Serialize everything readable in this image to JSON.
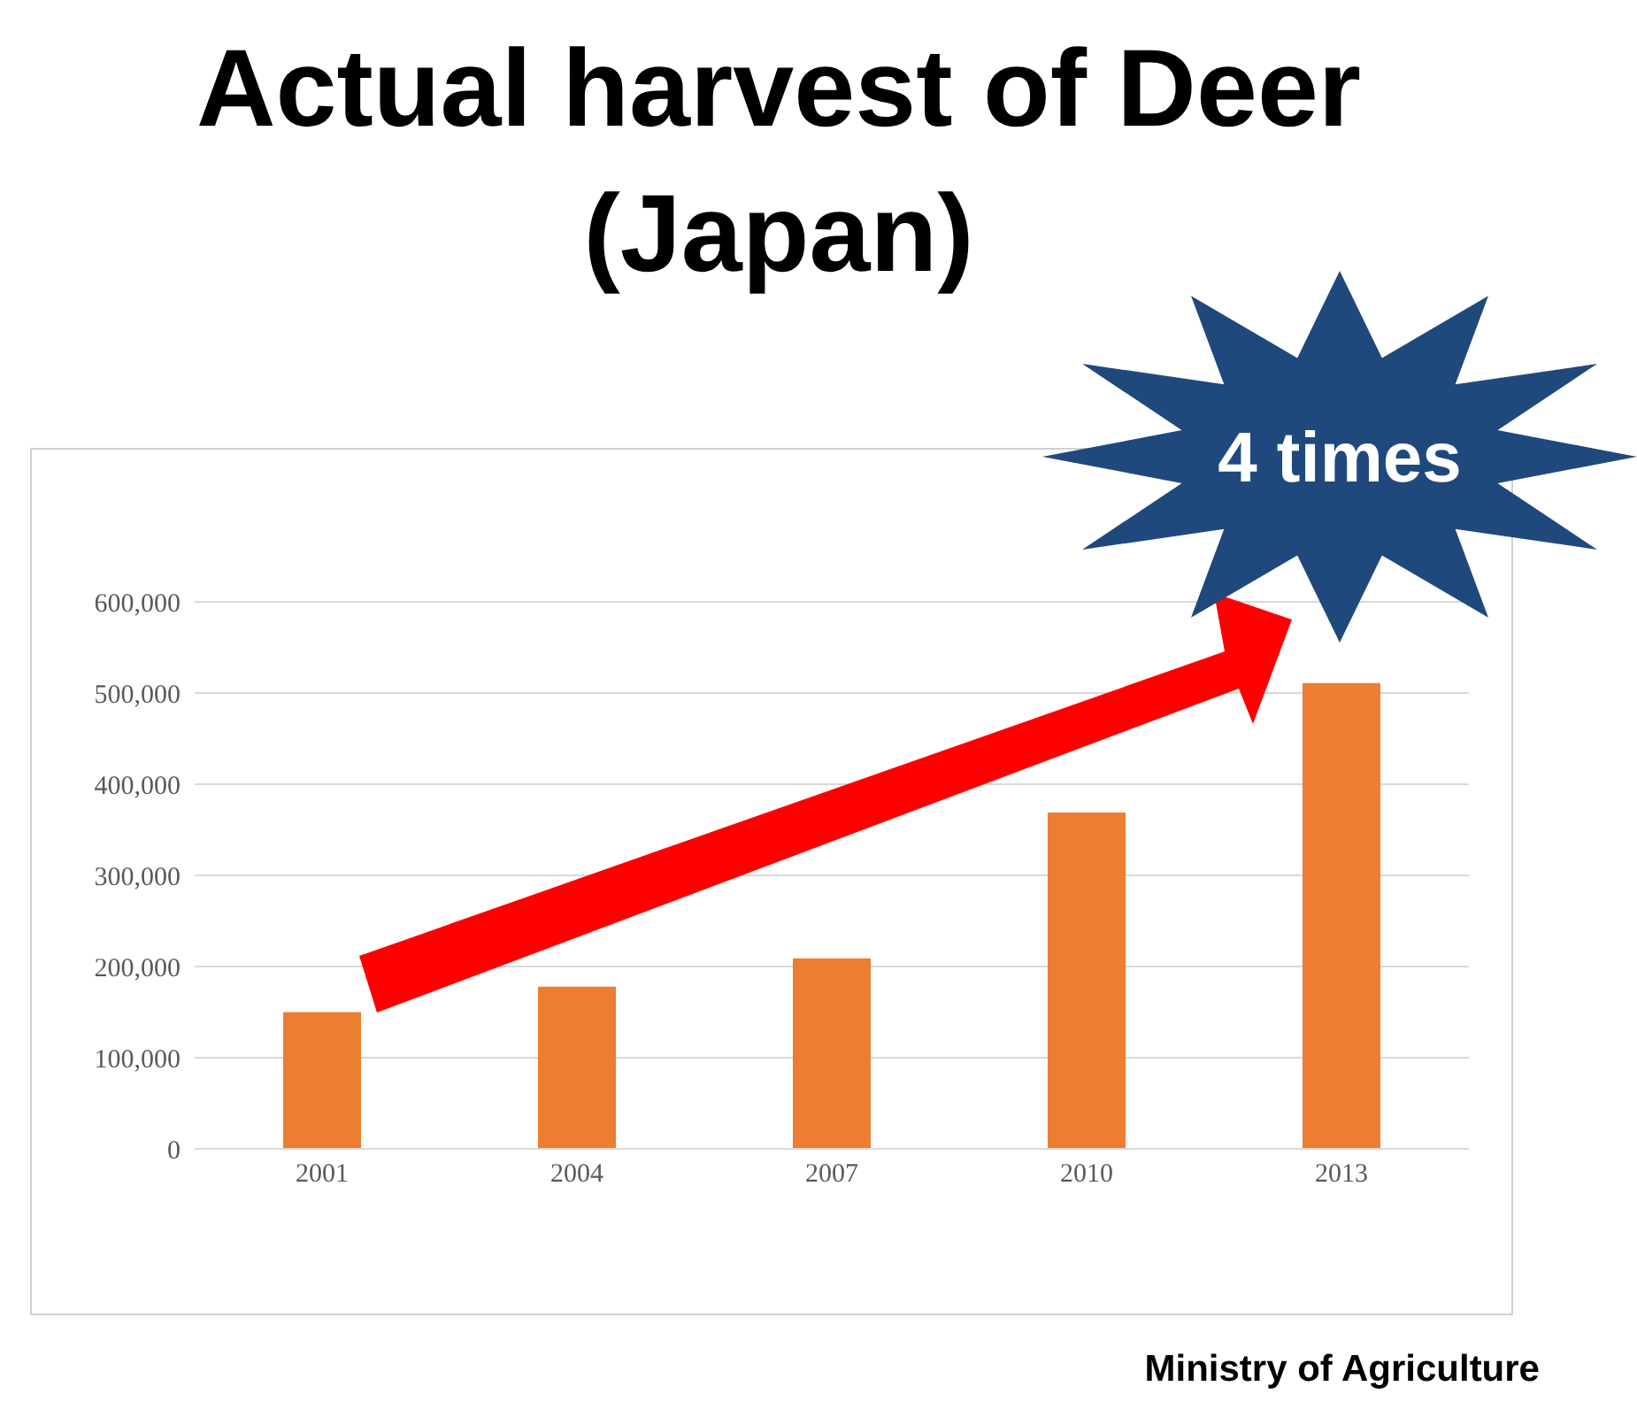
{
  "chart_data": {
    "type": "bar",
    "title": "Actual harvest of Deer (Japan)",
    "categories": [
      "2001",
      "2004",
      "2007",
      "2010",
      "2013"
    ],
    "values": [
      150000,
      178000,
      209000,
      369000,
      511000
    ],
    "color": "#ed7d31",
    "ylim": [
      0,
      600000
    ],
    "yticks": [
      {
        "value": 0,
        "label": "0"
      },
      {
        "value": 100000,
        "label": "100,000"
      },
      {
        "value": 200000,
        "label": "200,000"
      },
      {
        "value": 300000,
        "label": "300,000"
      },
      {
        "value": 400000,
        "label": "400,000"
      },
      {
        "value": 500000,
        "label": "500,000"
      },
      {
        "value": 600000,
        "label": "600,000"
      }
    ],
    "grid": "y",
    "legend": false,
    "annotations": [
      "4 times",
      "Ministry of Agriculture"
    ]
  }
}
